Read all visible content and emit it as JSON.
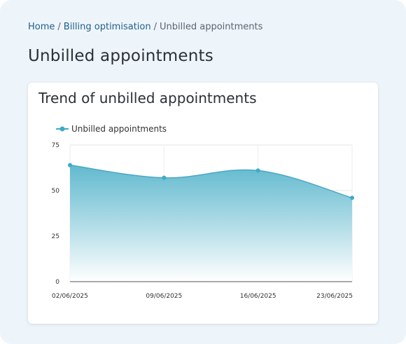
{
  "breadcrumb": {
    "home": "Home",
    "billing": "Billing optimisation",
    "current": "Unbilled appointments",
    "separator": "/"
  },
  "page_title": "Unbilled appointments",
  "card": {
    "title": "Trend of unbilled appointments"
  },
  "colors": {
    "series": "#3eaac8",
    "series_line": "#4aa8c6",
    "area_top": "#5ab6cc",
    "area_bottom": "#ffffff",
    "link": "#1f5f8b"
  },
  "chart_data": {
    "type": "area",
    "title": "Trend of unbilled appointments",
    "xlabel": "",
    "ylabel": "",
    "categories": [
      "02/06/2025",
      "09/06/2025",
      "16/06/2025",
      "23/06/2025"
    ],
    "series": [
      {
        "name": "Unbilled appointments",
        "values": [
          64,
          57,
          61,
          46
        ]
      }
    ],
    "ylim": [
      0,
      75
    ],
    "yticks": [
      0,
      25,
      50,
      75
    ],
    "grid": true,
    "legend": "top-left",
    "smooth": true
  }
}
